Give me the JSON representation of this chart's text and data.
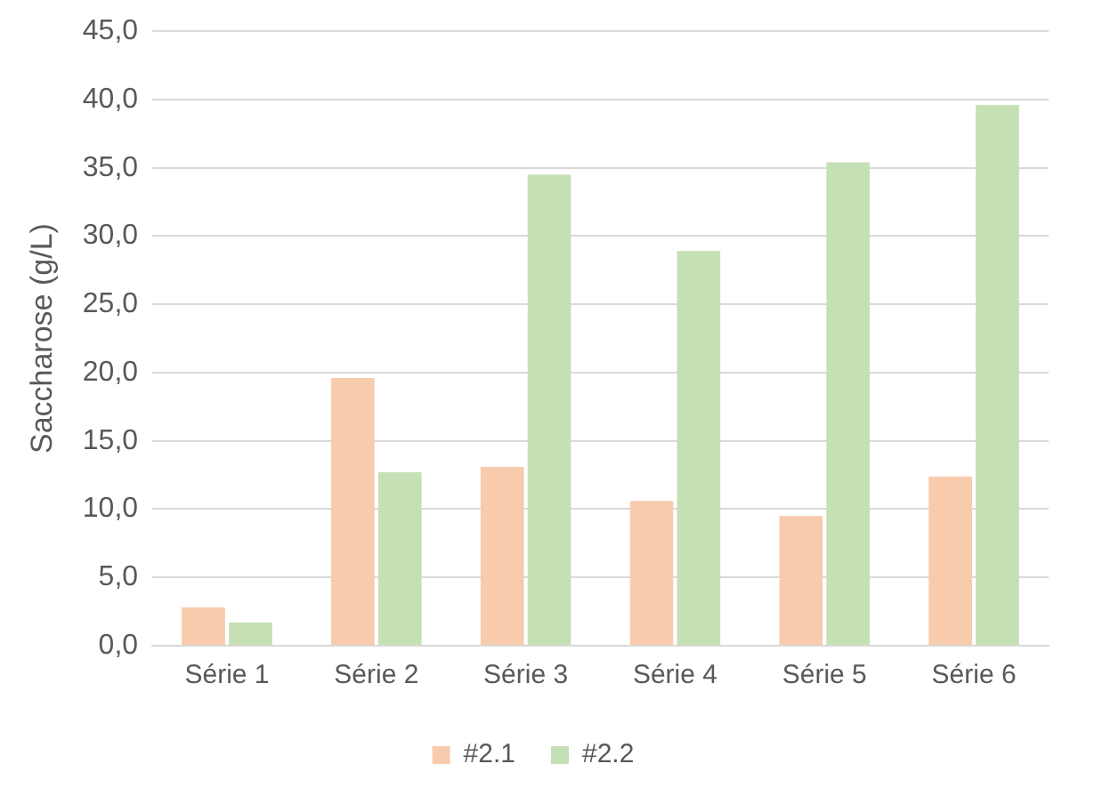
{
  "chart_data": {
    "type": "bar",
    "ylabel": "Saccharose (g/L)",
    "categories": [
      "Série 1",
      "Série 2",
      "Série 3",
      "Série 4",
      "Série 5",
      "Série 6"
    ],
    "series": [
      {
        "name": "#2.1",
        "color": "#f8cbad",
        "values": [
          2.8,
          19.6,
          13.1,
          10.6,
          9.5,
          12.4
        ]
      },
      {
        "name": "#2.2",
        "color": "#c5e0b4",
        "values": [
          1.7,
          12.7,
          34.5,
          28.9,
          35.4,
          39.6
        ]
      }
    ],
    "ylim": [
      0,
      45
    ],
    "yticks": [
      {
        "value": 0,
        "label": "0,0"
      },
      {
        "value": 5,
        "label": "5,0"
      },
      {
        "value": 10,
        "label": "10,0"
      },
      {
        "value": 15,
        "label": "15,0"
      },
      {
        "value": 20,
        "label": "20,0"
      },
      {
        "value": 25,
        "label": "25,0"
      },
      {
        "value": 30,
        "label": "30,0"
      },
      {
        "value": 35,
        "label": "35,0"
      },
      {
        "value": 40,
        "label": "40,0"
      },
      {
        "value": 45,
        "label": "45,0"
      }
    ],
    "grid": "y",
    "legend": "bottom"
  }
}
